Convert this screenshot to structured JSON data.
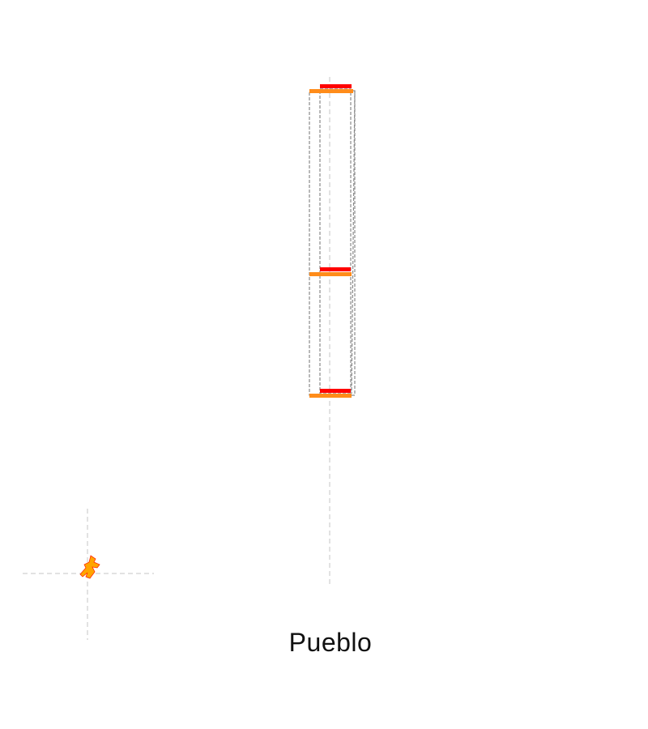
{
  "place_name": "Pueblo",
  "colors": {
    "top_edge": "#ff0000",
    "bottom_edge": "#ff8c1a",
    "outline": "#8a8a8a",
    "guide": "#d9d9d9",
    "marker_fill": "#ffa500",
    "marker_edge": "#ff2a00"
  },
  "icons": {
    "marker": "figure-icon"
  }
}
